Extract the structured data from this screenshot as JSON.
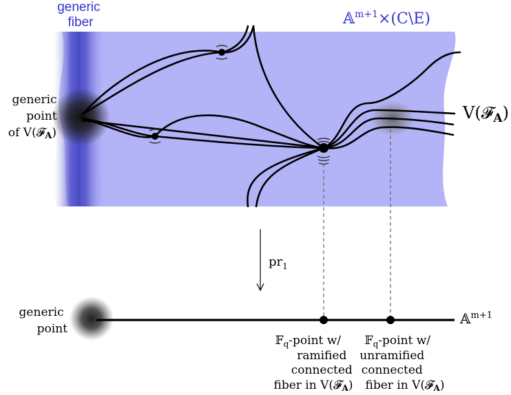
{
  "labels": {
    "generic_fiber": [
      "generic",
      "fiber"
    ],
    "space": "𝔸^{m+1} × (C∖E)",
    "space_main": "𝔸",
    "space_sup": "m+1",
    "space_rest": "×(C\\E)",
    "generic_point_of_V": [
      "generic",
      "point",
      "of V(𝓕"
    ],
    "generic_point_of_V_bold": "A",
    "V_main": "V(𝓕",
    "V_bold": "A",
    "projection_main": "pr",
    "projection_sub": "1",
    "generic_point_base": [
      "generic",
      "point"
    ],
    "base_main": "𝔸",
    "base_sup": "m+1",
    "ramified_caption": [
      "𝔽",
      "q",
      "-point w/",
      "ramified",
      "connected",
      "fiber in V(𝓕",
      "A",
      ")"
    ],
    "unramified_caption": [
      "𝔽",
      "q",
      "-point w/",
      "unramified",
      "connected",
      "fiber in V(𝓕",
      "A",
      ")"
    ]
  },
  "colors": {
    "region_fill": "#b3b3f7",
    "fiber_band": "#6a6ad6",
    "label_blue": "#3333cc",
    "curve": "#000000",
    "generic_point_halo": "#222222"
  }
}
